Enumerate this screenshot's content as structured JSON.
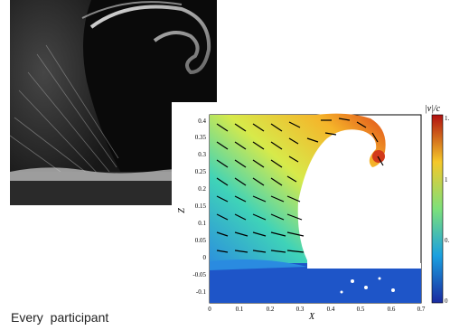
{
  "body_text": "Every participant",
  "photo": {
    "description_icon": "breaking-wave-photo"
  },
  "plot": {
    "xlabel": "X",
    "ylabel": "Z",
    "colorbar_label": "|v|/c",
    "x_ticks": [
      "0",
      "0.1",
      "0.2",
      "0.3",
      "0.4",
      "0.5",
      "0.6",
      "0.7"
    ],
    "y_ticks": [
      "0.4",
      "0.35",
      "0.3",
      "0.25",
      "0.2",
      "0.15",
      "0.1",
      "0.05",
      "0",
      "-0.05",
      "-0.1"
    ],
    "colorbar_ticks": [
      "1.",
      "1",
      "0.",
      "0"
    ]
  },
  "chart_data": {
    "type": "heatmap",
    "title": "",
    "xlabel": "X",
    "ylabel": "Z",
    "xlim": [
      0,
      0.7
    ],
    "ylim": [
      -0.1,
      0.45
    ],
    "colorbar": {
      "label": "|v|/c",
      "range": [
        0,
        1.5
      ]
    },
    "colors": {
      "low": "#1b3fb8",
      "mid": "#d9e84a",
      "high": "#c01818"
    }
  }
}
